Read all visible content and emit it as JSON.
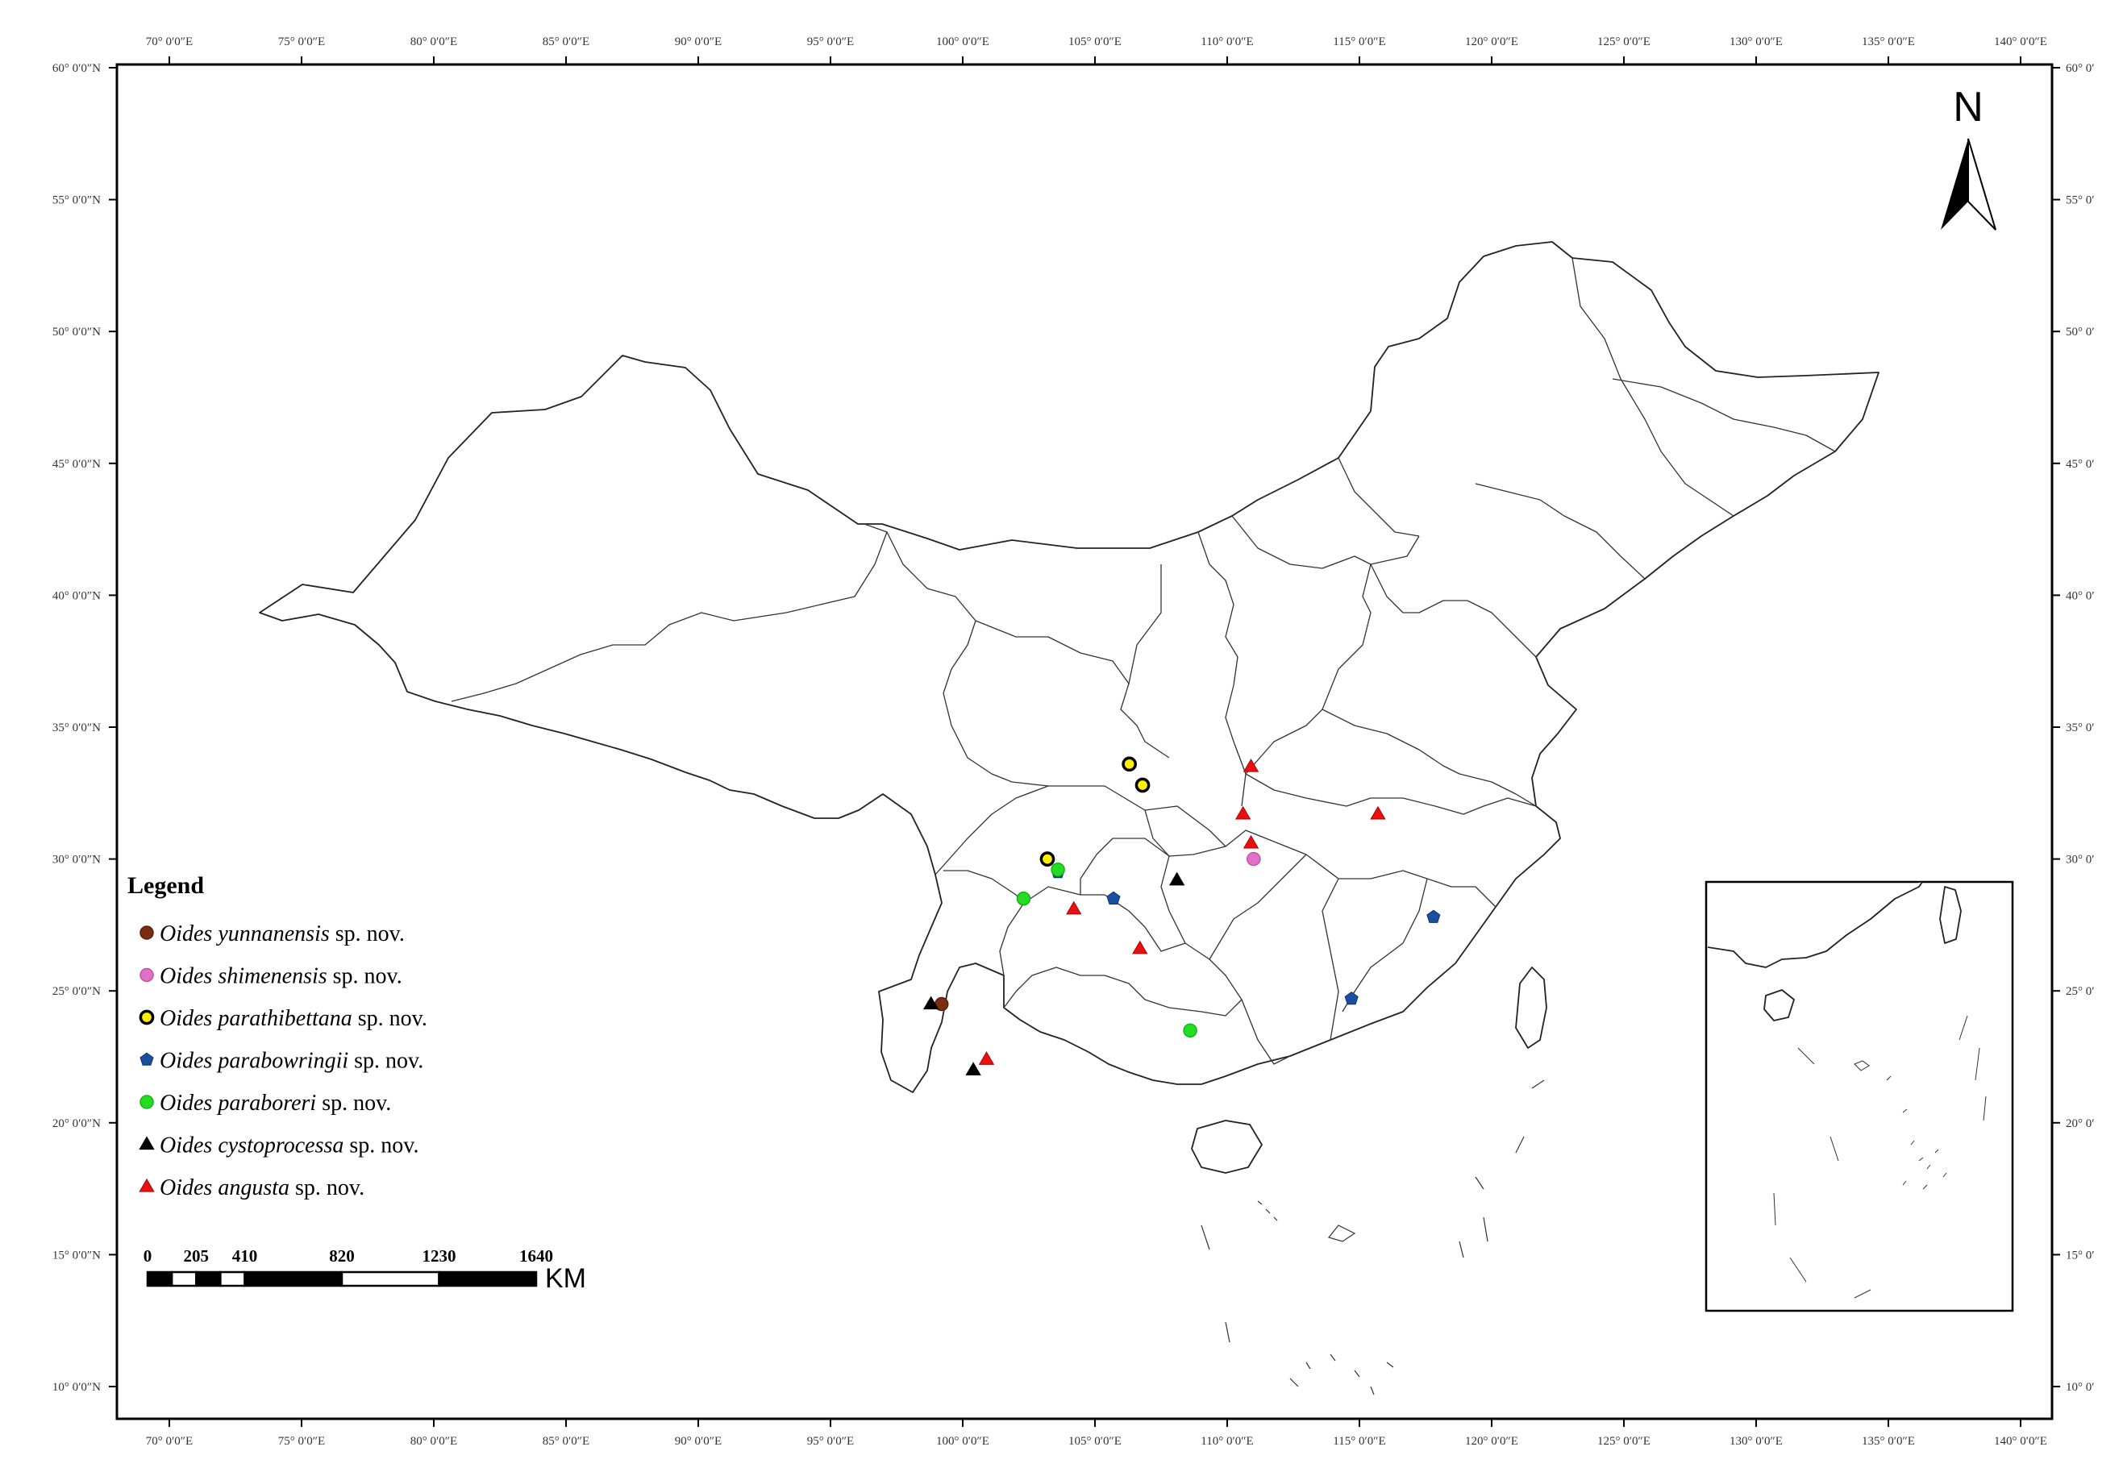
{
  "map": {
    "lon_range": [
      70,
      140
    ],
    "lat_range": [
      10,
      60
    ],
    "grid_step_deg": 5,
    "lon_labels": [
      "70° 0′0″E",
      "75° 0′0″E",
      "80° 0′0″E",
      "85° 0′0″E",
      "90° 0′0″E",
      "95° 0′0″E",
      "100° 0′0″E",
      "105° 0′0″E",
      "110° 0′0″E",
      "115° 0′0″E",
      "120° 0′0″E",
      "125° 0′0″E",
      "130° 0′0″E",
      "135° 0′0″E",
      "140° 0′0″E"
    ],
    "lat_labels": [
      "10° 0′0″N",
      "15° 0′0″N",
      "20° 0′0″N",
      "25° 0′0″N",
      "30° 0′0″N",
      "35° 0′0″N",
      "40° 0′0″N",
      "45° 0′0″N",
      "50° 0′0″N",
      "55° 0′0″N",
      "60° 0′0″N"
    ],
    "lat_labels_right": [
      "10° 0′",
      "15° 0′",
      "20° 0′",
      "25° 0′",
      "30° 0′",
      "35° 0′",
      "40° 0′",
      "45° 0′",
      "50° 0′",
      "55° 0′",
      "60° 0′"
    ],
    "north_label": "N"
  },
  "legend": {
    "title": "Legend",
    "items": [
      {
        "name": "Oides yunnanensis",
        "suffix": " sp. nov.",
        "shape": "circle",
        "fill": "#7a2e10",
        "stroke": "#5a1f08"
      },
      {
        "name": "Oides shimenensis",
        "suffix": " sp. nov.",
        "shape": "circle",
        "fill": "#e070c8",
        "stroke": "#c050a8"
      },
      {
        "name": "Oides parathibettana",
        "suffix": " sp. nov.",
        "shape": "ring",
        "fill": "#ffee00",
        "stroke": "#000000"
      },
      {
        "name": "Oides parabowringii",
        "suffix": " sp. nov.",
        "shape": "pentagon",
        "fill": "#1a4fa0",
        "stroke": "#0d3370"
      },
      {
        "name": "Oides paraboreri",
        "suffix": " sp. nov.",
        "shape": "circle",
        "fill": "#22dd22",
        "stroke": "#18b018"
      },
      {
        "name": "Oides cystoprocessa",
        "suffix": " sp. nov.",
        "shape": "triangle",
        "fill": "#000000",
        "stroke": "#000000"
      },
      {
        "name": "Oides angusta",
        "suffix": " sp. nov.",
        "shape": "triangle",
        "fill": "#e81010",
        "stroke": "#b00000"
      }
    ]
  },
  "scale_bar": {
    "labels": [
      "0",
      "205",
      "410",
      "820",
      "1230",
      "1640"
    ],
    "values_km": [
      0,
      205,
      410,
      820,
      1230,
      1640
    ],
    "unit": "KM"
  },
  "records": [
    {
      "species": 0,
      "lon": 99.2,
      "lat": 24.5
    },
    {
      "species": 1,
      "lon": 111.0,
      "lat": 30.0
    },
    {
      "species": 2,
      "lon": 103.2,
      "lat": 30.0
    },
    {
      "species": 2,
      "lon": 106.3,
      "lat": 33.6
    },
    {
      "species": 2,
      "lon": 106.8,
      "lat": 32.8
    },
    {
      "species": 3,
      "lon": 103.6,
      "lat": 29.5
    },
    {
      "species": 3,
      "lon": 105.7,
      "lat": 28.5
    },
    {
      "species": 3,
      "lon": 114.7,
      "lat": 24.7
    },
    {
      "species": 3,
      "lon": 117.8,
      "lat": 27.8
    },
    {
      "species": 4,
      "lon": 102.3,
      "lat": 28.5
    },
    {
      "species": 4,
      "lon": 103.6,
      "lat": 29.6
    },
    {
      "species": 4,
      "lon": 108.6,
      "lat": 23.5
    },
    {
      "species": 5,
      "lon": 98.8,
      "lat": 24.5
    },
    {
      "species": 5,
      "lon": 100.4,
      "lat": 22.0
    },
    {
      "species": 5,
      "lon": 108.1,
      "lat": 29.2
    },
    {
      "species": 6,
      "lon": 110.9,
      "lat": 33.5
    },
    {
      "species": 6,
      "lon": 110.6,
      "lat": 31.7
    },
    {
      "species": 6,
      "lon": 110.9,
      "lat": 30.6
    },
    {
      "species": 6,
      "lon": 115.7,
      "lat": 31.7
    },
    {
      "species": 6,
      "lon": 104.2,
      "lat": 28.1
    },
    {
      "species": 6,
      "lon": 106.7,
      "lat": 26.6
    },
    {
      "species": 6,
      "lon": 100.9,
      "lat": 22.4
    }
  ]
}
